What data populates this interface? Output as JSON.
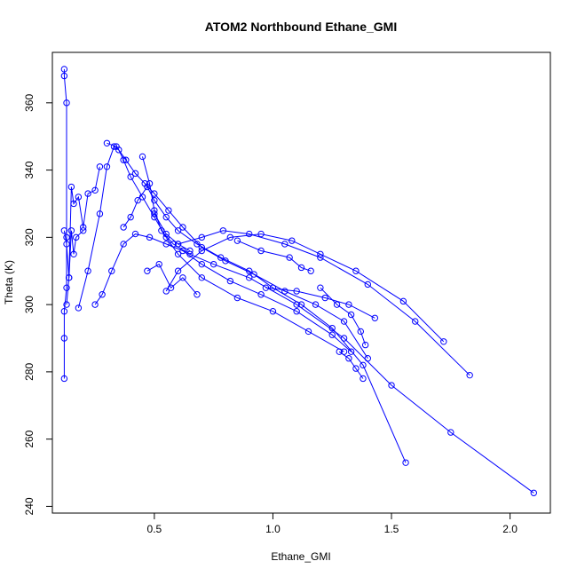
{
  "chart_data": {
    "type": "scatter",
    "title": "ATOM2 Northbound Ethane_GMI",
    "xlabel": "Ethane_GMI",
    "ylabel": "Theta (K)",
    "xlim": [
      0.07,
      2.17
    ],
    "ylim": [
      238,
      375
    ],
    "xticks": [
      0.5,
      1.0,
      1.5,
      2.0
    ],
    "xtick_labels": [
      "0.5",
      "1.0",
      "1.5",
      "2.0"
    ],
    "yticks": [
      240,
      260,
      280,
      300,
      320,
      340,
      360
    ],
    "ytick_labels": [
      "240",
      "260",
      "280",
      "300",
      "320",
      "340",
      "360"
    ],
    "grid": false,
    "legend": "none",
    "color": "#0000ff",
    "marker": "open-circle",
    "series": [
      {
        "x": [
          0.12,
          0.12,
          0.13,
          0.13,
          0.13,
          0.12,
          0.12,
          0.12
        ],
        "y": [
          370,
          368,
          360,
          320,
          305,
          298,
          290,
          278
        ]
      },
      {
        "x": [
          0.12,
          0.13,
          0.14,
          0.15,
          0.16,
          0.17,
          0.2
        ],
        "y": [
          322,
          318,
          308,
          322,
          315,
          320,
          322
        ]
      },
      {
        "x": [
          0.13,
          0.14,
          0.15,
          0.16,
          0.18,
          0.2,
          0.22,
          0.25,
          0.27
        ],
        "y": [
          300,
          308,
          335,
          330,
          332,
          323,
          333,
          334,
          341
        ]
      },
      {
        "x": [
          0.18,
          0.22,
          0.27,
          0.3,
          0.33,
          0.35,
          0.37,
          0.4,
          0.45,
          0.5,
          0.55,
          0.6,
          0.7,
          0.85,
          1.0,
          1.15,
          1.3
        ],
        "y": [
          299,
          310,
          327,
          341,
          347,
          346,
          343,
          338,
          332,
          326,
          320,
          315,
          308,
          302,
          298,
          292,
          286
        ]
      },
      {
        "x": [
          0.25,
          0.28,
          0.32,
          0.37,
          0.42,
          0.48,
          0.55,
          0.62,
          0.7,
          0.82,
          0.95,
          1.1,
          1.25,
          1.33
        ],
        "y": [
          300,
          303,
          310,
          318,
          321,
          320,
          318,
          316,
          312,
          307,
          303,
          298,
          291,
          286
        ]
      },
      {
        "x": [
          0.3,
          0.34,
          0.38,
          0.42,
          0.46,
          0.5,
          0.56,
          0.62,
          0.7,
          0.8,
          0.92,
          1.05,
          1.18,
          1.3,
          1.4
        ],
        "y": [
          348,
          347,
          343,
          339,
          336,
          333,
          328,
          323,
          317,
          313,
          309,
          304,
          300,
          295,
          284
        ]
      },
      {
        "x": [
          0.37,
          0.4,
          0.43,
          0.47,
          0.5,
          0.55,
          0.6,
          0.68,
          0.78,
          0.9,
          1.0,
          1.12,
          1.25,
          1.38,
          1.56
        ],
        "y": [
          323,
          326,
          331,
          335,
          331,
          326,
          322,
          318,
          314,
          310,
          305,
          300,
          293,
          282,
          253
        ]
      },
      {
        "x": [
          0.45,
          0.48,
          0.5,
          0.53,
          0.58,
          0.65,
          0.75,
          0.9,
          1.1,
          1.3,
          1.5,
          1.75,
          2.1
        ],
        "y": [
          344,
          336,
          328,
          322,
          318,
          315,
          312,
          308,
          300,
          290,
          276,
          262,
          244
        ]
      },
      {
        "x": [
          0.47,
          0.52,
          0.57,
          0.62,
          0.68
        ],
        "y": [
          310,
          312,
          305,
          308,
          303
        ]
      },
      {
        "x": [
          0.5,
          0.55,
          0.6,
          0.65
        ],
        "y": [
          327,
          321,
          318,
          316
        ]
      },
      {
        "x": [
          0.55,
          0.6,
          0.7,
          0.82,
          0.95,
          1.08,
          1.2,
          1.35,
          1.55,
          1.72
        ],
        "y": [
          304,
          310,
          316,
          320,
          321,
          319,
          315,
          310,
          301,
          289
        ]
      },
      {
        "x": [
          0.6,
          0.7,
          0.79,
          0.9,
          1.05,
          1.2,
          1.4,
          1.6,
          1.83
        ],
        "y": [
          318,
          320,
          322,
          321,
          318,
          314,
          306,
          295,
          279
        ]
      },
      {
        "x": [
          0.85,
          0.95,
          1.07,
          1.12,
          1.16
        ],
        "y": [
          319,
          316,
          314,
          311,
          310
        ]
      },
      {
        "x": [
          0.97,
          1.1,
          1.22,
          1.32,
          1.43
        ],
        "y": [
          305,
          304,
          302,
          300,
          296
        ]
      },
      {
        "x": [
          1.2,
          1.27,
          1.33,
          1.37,
          1.39
        ],
        "y": [
          305,
          300,
          297,
          292,
          288
        ]
      },
      {
        "x": [
          1.28,
          1.32,
          1.35,
          1.38
        ],
        "y": [
          286,
          284,
          281,
          278
        ]
      }
    ]
  }
}
